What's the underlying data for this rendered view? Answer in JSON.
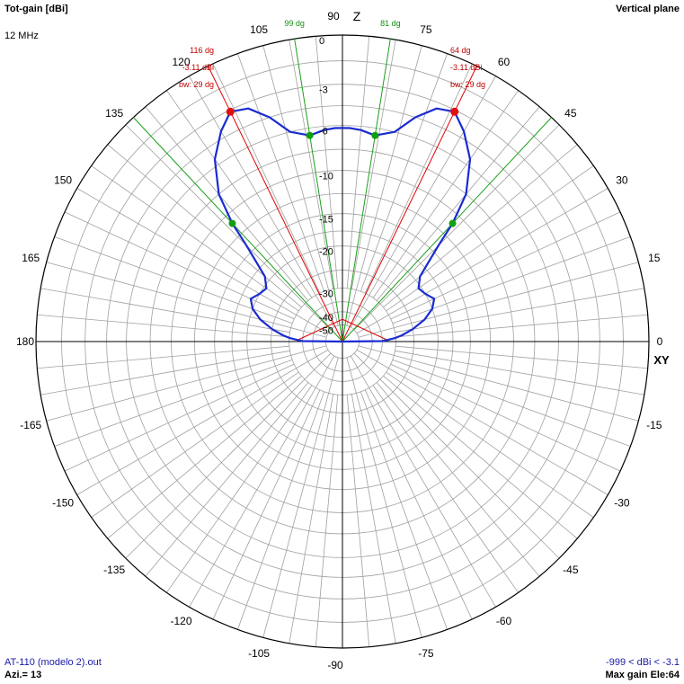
{
  "header": {
    "title": "Tot-gain [dBi]",
    "frequency": "12 MHz",
    "plane": "Vertical plane"
  },
  "footer": {
    "file": "AT-110 (modelo 2).out",
    "azimuth": "Azi.= 13",
    "range": "-999 < dBi < -3.1",
    "max_gain": "Max gain Ele:64"
  },
  "colors": {
    "pattern": "#1a2bd0",
    "grid": "#a0a0a0",
    "axis": "#000000",
    "main_lobe": "#e00000",
    "half_power": "#1aa01a",
    "ring_text": "#000000"
  },
  "chart_data": {
    "type": "polar",
    "angle_unit": "degrees",
    "angle_labels": [
      {
        "angle": 0,
        "text": "0"
      },
      {
        "angle": 15,
        "text": "15"
      },
      {
        "angle": 30,
        "text": "30"
      },
      {
        "angle": 45,
        "text": "45"
      },
      {
        "angle": 60,
        "text": "60"
      },
      {
        "angle": 75,
        "text": "75"
      },
      {
        "angle": 105,
        "text": "105"
      },
      {
        "angle": 120,
        "text": "120"
      },
      {
        "angle": 135,
        "text": "135"
      },
      {
        "angle": 150,
        "text": "150"
      },
      {
        "angle": 165,
        "text": "165"
      },
      {
        "angle": 180,
        "text": "180"
      },
      {
        "angle": -15,
        "text": "-15"
      },
      {
        "angle": -30,
        "text": "-30"
      },
      {
        "angle": -45,
        "text": "-45"
      },
      {
        "angle": -60,
        "text": "-60"
      },
      {
        "angle": -75,
        "text": "-75"
      },
      {
        "angle": -105,
        "text": "-105"
      },
      {
        "angle": -120,
        "text": "-120"
      },
      {
        "angle": -135,
        "text": "-135"
      },
      {
        "angle": -150,
        "text": "-150"
      },
      {
        "angle": -165,
        "text": "-165"
      }
    ],
    "axis_labels": {
      "top": "90",
      "bottom": "-90",
      "z": "Z",
      "xy": "XY"
    },
    "ring_labels": [
      {
        "db": 0,
        "text": "0"
      },
      {
        "db": -3,
        "text": "-3"
      },
      {
        "db": -6,
        "text": "-6"
      },
      {
        "db": -10,
        "text": "-10"
      },
      {
        "db": -15,
        "text": "-15"
      },
      {
        "db": -20,
        "text": "-20"
      },
      {
        "db": -30,
        "text": "-30"
      },
      {
        "db": -40,
        "text": "-40"
      },
      {
        "db": -50,
        "text": "-50"
      }
    ],
    "radial_levels_db": [
      0,
      -1.5,
      -3,
      -4.5,
      -6,
      -8,
      -10,
      -12.5,
      -15,
      -17.5,
      -20,
      -25,
      -30,
      -35,
      -40,
      -50
    ],
    "min_db": -60,
    "series": [
      {
        "points": [
          [
            0,
            -60
          ],
          [
            0.6,
            -35
          ],
          [
            2,
            -33
          ],
          [
            4,
            -30
          ],
          [
            6,
            -28
          ],
          [
            10,
            -25
          ],
          [
            15,
            -22
          ],
          [
            20,
            -20
          ],
          [
            25,
            -19
          ],
          [
            30,
            -20
          ],
          [
            35,
            -20.5
          ],
          [
            40,
            -19
          ],
          [
            45,
            -14
          ],
          [
            47,
            -11
          ],
          [
            50,
            -8
          ],
          [
            55,
            -5.5
          ],
          [
            60,
            -4
          ],
          [
            64,
            -3.11
          ],
          [
            68,
            -3.4
          ],
          [
            72,
            -4.5
          ],
          [
            76,
            -6
          ],
          [
            81,
            -6.6
          ],
          [
            85,
            -6.3
          ],
          [
            88,
            -6.2
          ],
          [
            90,
            -6.2
          ],
          [
            92,
            -6.2
          ],
          [
            95,
            -6.3
          ],
          [
            99,
            -6.6
          ],
          [
            104,
            -6
          ],
          [
            108,
            -4.5
          ],
          [
            112,
            -3.4
          ],
          [
            116,
            -3.11
          ],
          [
            120,
            -4
          ],
          [
            125,
            -5.5
          ],
          [
            130,
            -8
          ],
          [
            133,
            -11
          ],
          [
            135,
            -14
          ],
          [
            140,
            -19
          ],
          [
            145,
            -20.5
          ],
          [
            150,
            -20
          ],
          [
            155,
            -19
          ],
          [
            160,
            -20
          ],
          [
            165,
            -22
          ],
          [
            170,
            -25
          ],
          [
            174,
            -28
          ],
          [
            176,
            -30
          ],
          [
            178,
            -33
          ],
          [
            179.4,
            -35
          ],
          [
            180,
            -60
          ]
        ]
      }
    ],
    "main_lobes": [
      {
        "angle": 64,
        "gain_db": -3.11,
        "labels": [
          "64 dg",
          "-3.11 dBi",
          "bw: 29 dg"
        ]
      },
      {
        "angle": 116,
        "gain_db": -3.11,
        "labels": [
          "116 dg",
          "-3.11 dBi",
          "bw: 29 dg"
        ]
      }
    ],
    "half_power_points": [
      {
        "angle": 47,
        "gain_db": -11
      },
      {
        "angle": 81,
        "gain_db": -6.6,
        "label": "81 dg"
      },
      {
        "angle": 99,
        "gain_db": -6.6,
        "label": "99 dg"
      },
      {
        "angle": 133,
        "gain_db": -11
      }
    ]
  }
}
